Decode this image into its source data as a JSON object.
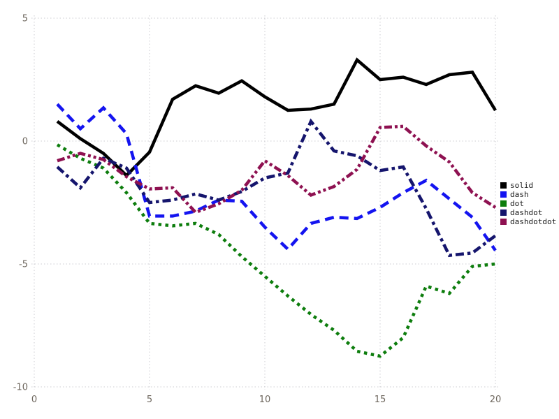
{
  "chart_data": {
    "type": "line",
    "title": "",
    "xlabel": "",
    "ylabel": "",
    "x": [
      1,
      2,
      3,
      4,
      5,
      6,
      7,
      8,
      9,
      10,
      11,
      12,
      13,
      14,
      15,
      16,
      17,
      18,
      19,
      20
    ],
    "series": [
      {
        "name": "solid",
        "line_style": "solid",
        "color": "#000000",
        "values": [
          0.8,
          0.1,
          -0.5,
          -1.4,
          -0.45,
          1.7,
          2.25,
          1.95,
          2.45,
          1.8,
          1.25,
          1.3,
          1.5,
          3.3,
          2.5,
          2.6,
          2.3,
          2.7,
          2.8,
          1.25
        ]
      },
      {
        "name": "dash",
        "line_style": "dash",
        "color": "#1414f0",
        "values": [
          1.5,
          0.5,
          1.35,
          0.3,
          -3.05,
          -3.05,
          -2.85,
          -2.4,
          -2.45,
          -3.5,
          -4.4,
          -3.35,
          -3.1,
          -3.15,
          -2.7,
          -2.1,
          -1.6,
          -2.35,
          -3.1,
          -4.45
        ]
      },
      {
        "name": "dot",
        "line_style": "dot",
        "color": "#0d7d0d",
        "values": [
          -0.15,
          -0.7,
          -1.1,
          -2.1,
          -3.35,
          -3.45,
          -3.35,
          -3.8,
          -4.7,
          -5.5,
          -6.3,
          -7.05,
          -7.7,
          -8.55,
          -8.75,
          -8.0,
          -5.9,
          -6.2,
          -5.1,
          -5.0
        ]
      },
      {
        "name": "dashdot",
        "line_style": "dashdot",
        "color": "#15156d",
        "values": [
          -1.05,
          -1.9,
          -0.7,
          -1.1,
          -2.5,
          -2.4,
          -2.15,
          -2.4,
          -2.05,
          -1.5,
          -1.3,
          0.8,
          -0.4,
          -0.6,
          -1.2,
          -1.05,
          -2.75,
          -4.65,
          -4.55,
          -3.85
        ]
      },
      {
        "name": "dashdotdot",
        "line_style": "dashdotdot",
        "color": "#8e1151",
        "values": [
          -0.8,
          -0.5,
          -0.75,
          -1.45,
          -1.95,
          -1.9,
          -2.9,
          -2.55,
          -2.0,
          -0.8,
          -1.4,
          -2.2,
          -1.85,
          -1.15,
          0.55,
          0.6,
          -0.2,
          -0.85,
          -2.1,
          -2.7
        ]
      }
    ],
    "axes": {
      "xlim": [
        0,
        20.6
      ],
      "ylim": [
        -10.4,
        5.2
      ],
      "xticks": [
        "0",
        "5",
        "10",
        "15",
        "20"
      ],
      "xtick_values": [
        0,
        5,
        10,
        15,
        20
      ],
      "yticks": [
        "-10",
        "-5",
        "0",
        "5"
      ],
      "ytick_values": [
        -10,
        -5,
        0,
        5
      ],
      "grid": "dotted"
    },
    "legend": {
      "position": "right-outside",
      "entries": [
        "solid",
        "dash",
        "dot",
        "dashdot",
        "dashdotdot"
      ]
    }
  },
  "style": {
    "grid_color": "#ccccd2",
    "tick_label_color": "#6e675e",
    "legend_text_color": "#1c1c1c",
    "background": "#ffffff"
  }
}
